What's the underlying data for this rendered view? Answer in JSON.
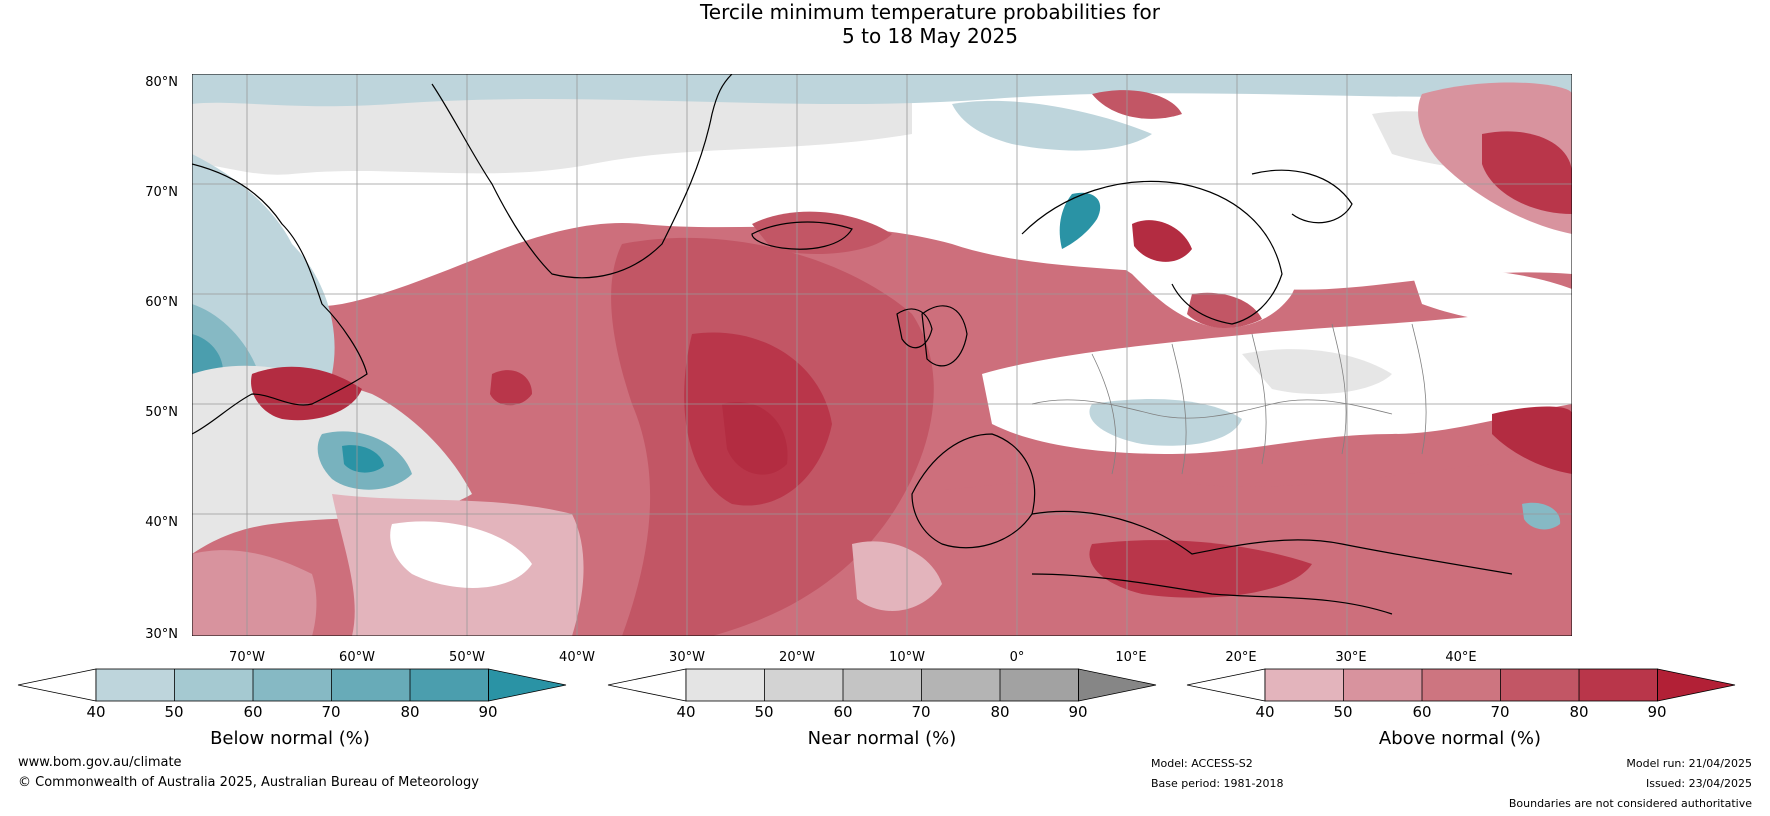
{
  "title": {
    "line1": "Tercile minimum temperature probabilities for",
    "line2": "5 to 18 May 2025"
  },
  "map": {
    "lat_labels": [
      "80°N",
      "70°N",
      "60°N",
      "50°N",
      "40°N",
      "30°N"
    ],
    "lon_labels": [
      "70°W",
      "60°W",
      "50°W",
      "40°W",
      "30°W",
      "20°W",
      "10°W",
      "0°",
      "10°E",
      "20°E",
      "30°E",
      "40°E"
    ],
    "colors": {
      "ocean_red_mid": "#cd6f7c",
      "ocean_red_dark": "#b32c41",
      "ocean_red_light": "#e2b1b9",
      "blue_light": "#bed5dc",
      "blue_mid": "#78b2be",
      "blue_dark": "#2a93a5",
      "grey_light": "#e6e6e6",
      "grey_mid": "#c8c8c8",
      "white": "#ffffff"
    }
  },
  "colorbars": [
    {
      "label": "Below normal (%)",
      "ticks": [
        "40",
        "50",
        "60",
        "70",
        "80",
        "90"
      ],
      "colors": [
        "#bed5dc",
        "#a5c9d1",
        "#86b9c4",
        "#68abb8",
        "#4b9eae",
        "#2a93a5"
      ]
    },
    {
      "label": "Near normal (%)",
      "ticks": [
        "40",
        "50",
        "60",
        "70",
        "80",
        "90"
      ],
      "colors": [
        "#e4e4e4",
        "#d3d3d3",
        "#c4c4c4",
        "#b4b4b4",
        "#a2a2a2",
        "#868686"
      ]
    },
    {
      "label": "Above normal (%)",
      "ticks": [
        "40",
        "50",
        "60",
        "70",
        "80",
        "90"
      ],
      "colors": [
        "#e3b4bc",
        "#d8939e",
        "#cd7580",
        "#c25665",
        "#b9364a",
        "#b22036"
      ]
    }
  ],
  "footer": {
    "website": "www.bom.gov.au/climate",
    "copyright": "© Commonwealth of Australia 2025, Australian Bureau of Meteorology",
    "model": "Model: ACCESS-S2",
    "base_period": "Base period: 1981-2018",
    "model_run": "Model run: 21/04/2025",
    "issued": "Issued: 23/04/2025",
    "disclaimer": "Boundaries are not considered authoritative"
  }
}
